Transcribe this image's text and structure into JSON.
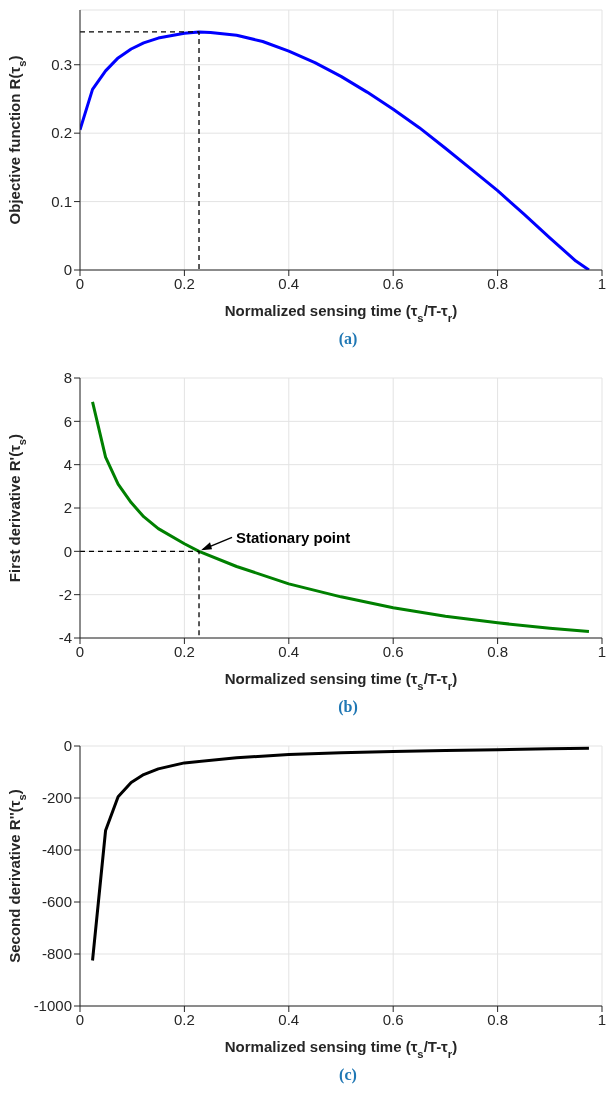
{
  "chart_data": [
    {
      "type": "line",
      "xlabel": "Normalized sensing time (τ$_{s}$/T-τ$_{r}$)",
      "ylabel": "Objective function R(τ$_{s}$)",
      "xlim": [
        0,
        1
      ],
      "xticks": [
        0,
        0.2,
        0.4,
        0.6,
        0.8,
        1
      ],
      "ylim": [
        0,
        0.38
      ],
      "yticks": [
        0,
        0.1,
        0.2,
        0.3
      ],
      "grid": true,
      "annotations": [
        "(a)"
      ],
      "series": [
        {
          "color": "#0000ff",
          "x": [
            0,
            0.024,
            0.049,
            0.073,
            0.098,
            0.122,
            0.15,
            0.2,
            0.228,
            0.25,
            0.3,
            0.35,
            0.4,
            0.45,
            0.5,
            0.55,
            0.6,
            0.65,
            0.7,
            0.75,
            0.8,
            0.85,
            0.9,
            0.95,
            0.975
          ],
          "values": [
            0.205,
            0.264,
            0.291,
            0.31,
            0.323,
            0.332,
            0.339,
            0.346,
            0.348,
            0.347,
            0.343,
            0.334,
            0.32,
            0.303,
            0.283,
            0.26,
            0.235,
            0.208,
            0.178,
            0.147,
            0.116,
            0.082,
            0.047,
            0.013,
            0
          ]
        },
        {
          "color": "#000000",
          "line_style": "dashed",
          "x": [
            0,
            0.228,
            0.228
          ],
          "values": [
            0.348,
            0.348,
            0
          ]
        }
      ]
    },
    {
      "type": "line",
      "xlabel": "Normalized sensing time (τ$_{s}$/T-τ$_{r}$)",
      "ylabel": "First derivative R'(τ$_{s}$)",
      "xlim": [
        0,
        1
      ],
      "xticks": [
        0,
        0.2,
        0.4,
        0.6,
        0.8,
        1
      ],
      "ylim": [
        -4,
        8
      ],
      "yticks": [
        -4,
        -2,
        0,
        2,
        4,
        6,
        8
      ],
      "grid": true,
      "annotations": [
        {
          "text": "Stationary point",
          "x": 0.228,
          "y": 0
        },
        "(b)"
      ],
      "series": [
        {
          "color": "#008000",
          "x": [
            0.024,
            0.049,
            0.073,
            0.098,
            0.122,
            0.15,
            0.2,
            0.228,
            0.3,
            0.4,
            0.5,
            0.6,
            0.7,
            0.8,
            0.9,
            0.975
          ],
          "values": [
            6.9,
            4.35,
            3.1,
            2.25,
            1.6,
            1.05,
            0.35,
            0,
            -0.7,
            -1.5,
            -2.1,
            -2.6,
            -3,
            -3.3,
            -3.55,
            -3.7
          ]
        },
        {
          "color": "#000000",
          "line_style": "dashed",
          "x": [
            0,
            0.228,
            0.228
          ],
          "values": [
            0,
            0,
            -4
          ]
        }
      ]
    },
    {
      "type": "line",
      "xlabel": "Normalized sensing time (τ$_{s}$/T-τ$_{r}$)",
      "ylabel": "Second derivative R''(τ$_{s}$)",
      "xlim": [
        0,
        1
      ],
      "xticks": [
        0,
        0.2,
        0.4,
        0.6,
        0.8,
        1
      ],
      "ylim": [
        -1000,
        0
      ],
      "yticks": [
        -1000,
        -800,
        -600,
        -400,
        -200,
        0
      ],
      "grid": true,
      "annotations": [
        "(c)"
      ],
      "series": [
        {
          "color": "#000000",
          "x": [
            0.024,
            0.049,
            0.073,
            0.098,
            0.122,
            0.15,
            0.2,
            0.3,
            0.4,
            0.5,
            0.6,
            0.7,
            0.8,
            0.9,
            0.975
          ],
          "values": [
            -825,
            -325,
            -195,
            -140,
            -110,
            -88,
            -65,
            -45,
            -33,
            -26,
            -21,
            -17,
            -14,
            -11,
            -9
          ]
        }
      ]
    }
  ]
}
